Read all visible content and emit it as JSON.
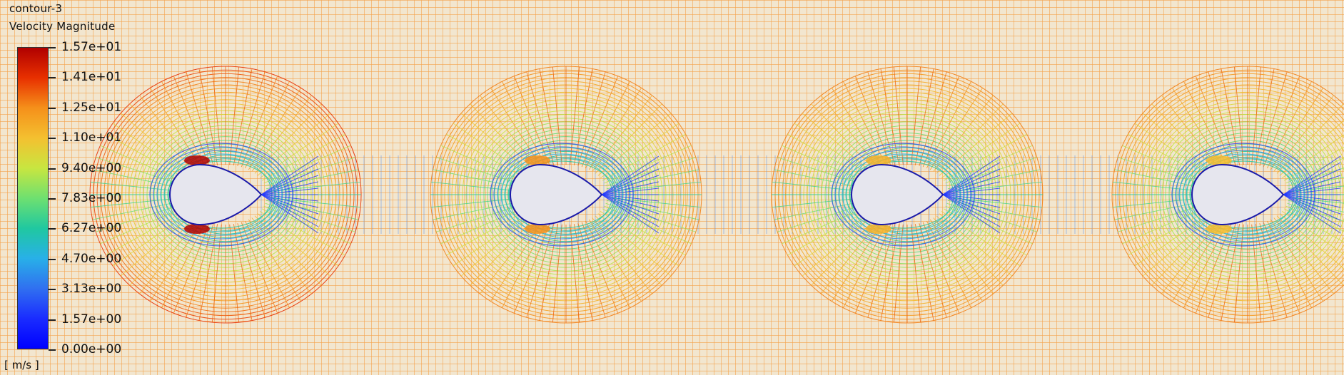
{
  "legend": {
    "name": "contour-3",
    "variable": "Velocity Magnitude",
    "unit": "[ m/s ]",
    "ticks": [
      "1.57e+01",
      "1.41e+01",
      "1.25e+01",
      "1.10e+01",
      "9.40e+00",
      "7.83e+00",
      "6.27e+00",
      "4.70e+00",
      "3.13e+00",
      "1.57e+00",
      "0.00e+00"
    ],
    "colormap": [
      "#b00000",
      "#e83000",
      "#f5901a",
      "#f4c030",
      "#c8e640",
      "#6ee070",
      "#20c8a0",
      "#28b0e8",
      "#3070f0",
      "#1a2cff",
      "#0000ff"
    ]
  },
  "colors": {
    "background": "#f2e6cf",
    "far_field_mesh": "#f5a44a",
    "body_fill": "#e6e6ee",
    "body_edge": "#1a1aaa"
  },
  "scene": {
    "bodies": [
      "body-1",
      "body-2",
      "body-3",
      "body-4"
    ]
  }
}
